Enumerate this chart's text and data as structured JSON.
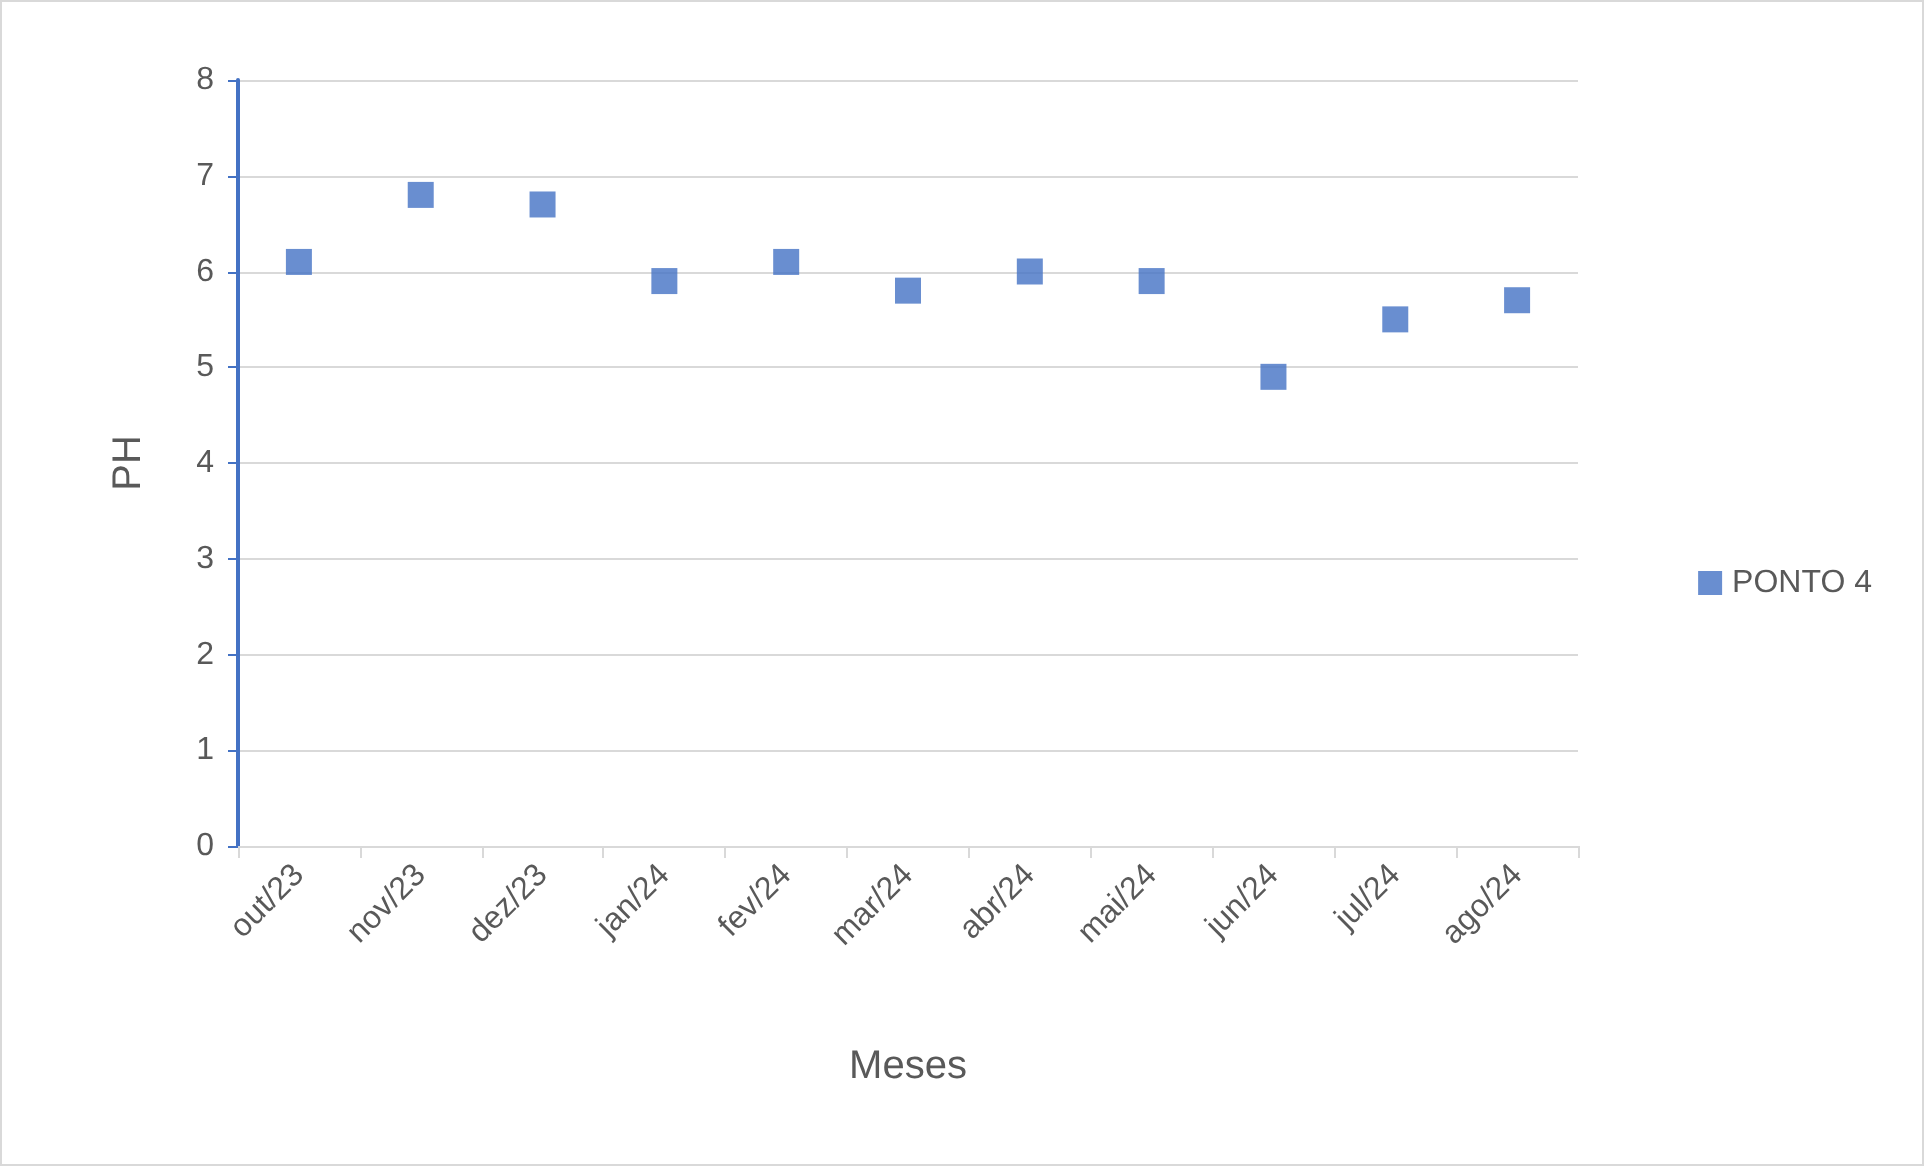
{
  "chart_data": {
    "type": "scatter",
    "xlabel": "Meses",
    "ylabel": "PH",
    "categories": [
      "out/23",
      "nov/23",
      "dez/23",
      "jan/24",
      "fev/24",
      "mar/24",
      "abr/24",
      "mai/24",
      "jun/24",
      "jul/24",
      "ago/24"
    ],
    "series": [
      {
        "name": "PONTO 4",
        "color": "#4472c4",
        "values": [
          6.1,
          6.8,
          6.7,
          5.9,
          6.1,
          5.8,
          6.0,
          5.9,
          4.9,
          5.5,
          5.7
        ]
      }
    ],
    "ylim": [
      0,
      8
    ],
    "yticks": [
      0,
      1,
      2,
      3,
      4,
      5,
      6,
      7,
      8
    ],
    "grid": "y",
    "legend": "right",
    "marker": "square"
  }
}
